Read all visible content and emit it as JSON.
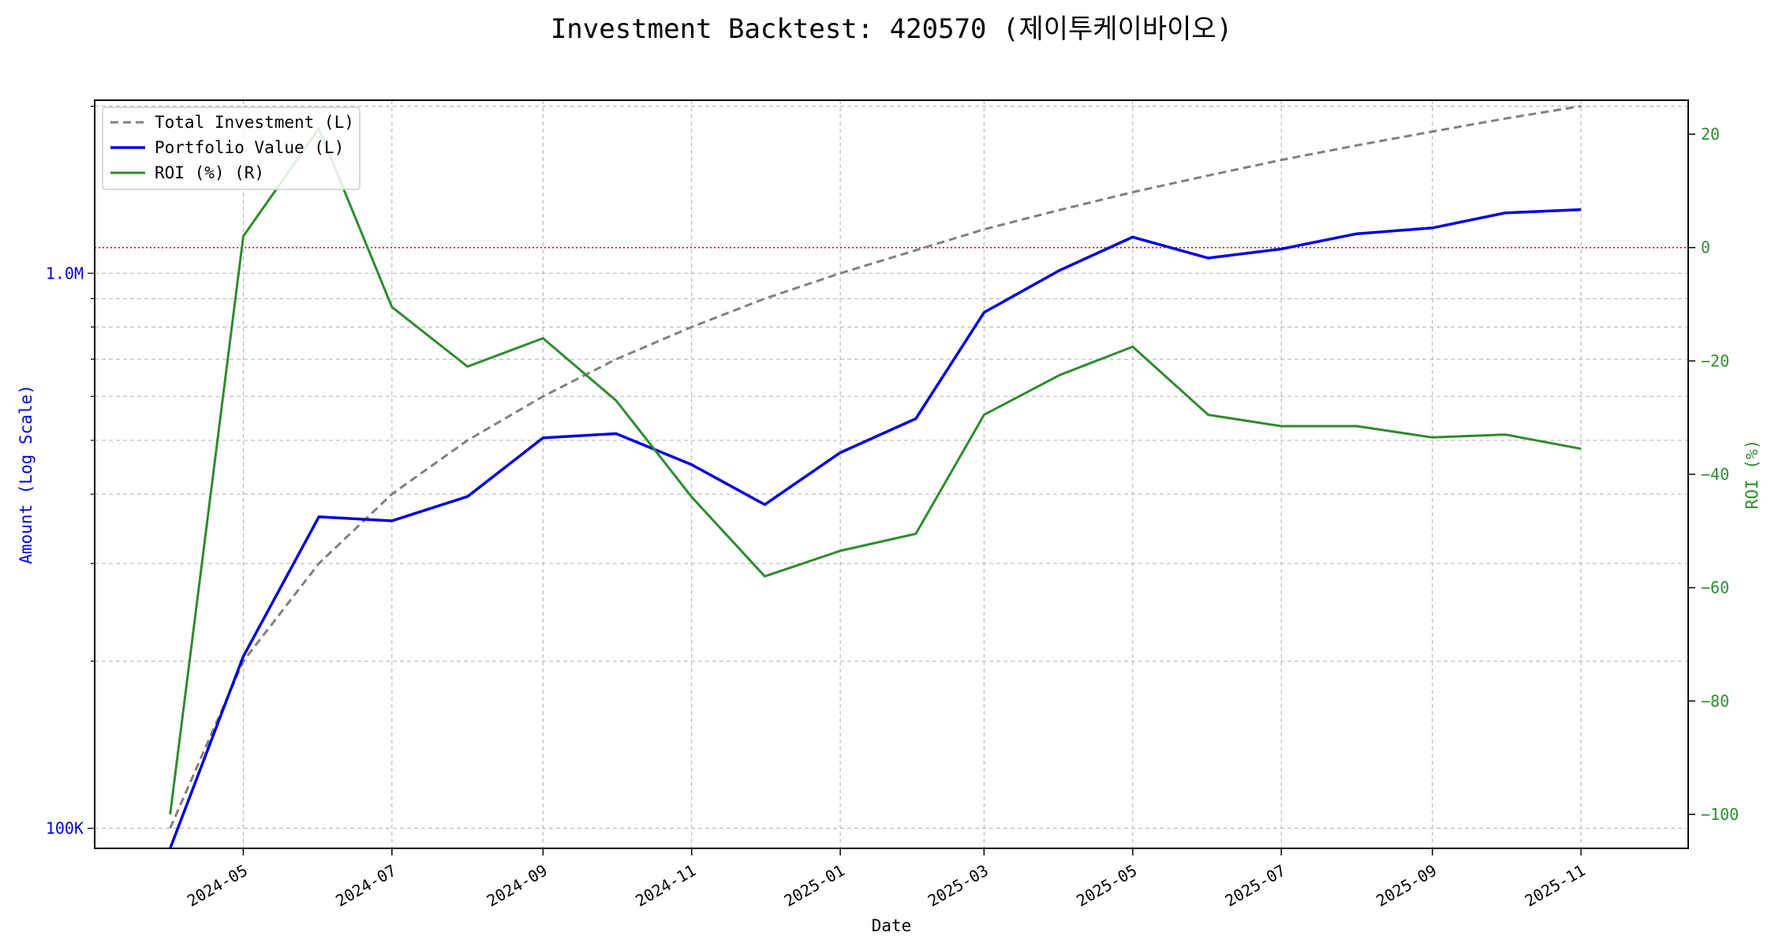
{
  "chart_data": {
    "type": "line",
    "title": "Investment Backtest: 420570 (제이투케이바이오)",
    "xlabel": "Date",
    "ylabel_left": "Amount (Log Scale)",
    "ylabel_right": "ROI (%)",
    "y_left_scale": "log",
    "y_left_lim": [
      92000,
      2050000
    ],
    "y_right_lim": [
      -106,
      26
    ],
    "x_lim": [
      "2024-03-01",
      "2025-12-15"
    ],
    "x_ticks": [
      "2024-05-01",
      "2024-07-01",
      "2024-09-01",
      "2024-11-01",
      "2025-01-01",
      "2025-03-01",
      "2025-05-01",
      "2025-07-01",
      "2025-09-01",
      "2025-11-01"
    ],
    "x_tick_labels": [
      "2024-05",
      "2024-07",
      "2024-09",
      "2024-11",
      "2025-01",
      "2025-03",
      "2025-05",
      "2025-07",
      "2025-09",
      "2025-11"
    ],
    "y_left_ticks": [
      100000,
      1000000
    ],
    "y_left_tick_labels": [
      "100K",
      "1.0M"
    ],
    "y_right_ticks": [
      20,
      0,
      -20,
      -40,
      -60,
      -80,
      -100
    ],
    "y_right_tick_labels": [
      "20",
      "0",
      "−20",
      "−40",
      "−60",
      "−80",
      "−100"
    ],
    "grid": true,
    "legend_position": "top-left",
    "reference_line": {
      "axis": "right",
      "value": 0,
      "color": "#cc0000",
      "style": "dotted"
    },
    "dates": [
      "2024-04-01",
      "2024-05-01",
      "2024-06-01",
      "2024-07-01",
      "2024-08-01",
      "2024-09-01",
      "2024-10-01",
      "2024-11-01",
      "2024-12-01",
      "2025-01-01",
      "2025-02-01",
      "2025-03-01",
      "2025-04-01",
      "2025-05-01",
      "2025-06-01",
      "2025-07-01",
      "2025-08-01",
      "2025-09-01",
      "2025-10-01",
      "2025-11-01"
    ],
    "series": [
      {
        "name": "Total Investment (L)",
        "axis": "left",
        "color": "#808080",
        "style": "dashed",
        "values": [
          100000,
          200000,
          300000,
          400000,
          500000,
          600000,
          700000,
          800000,
          900000,
          1000000,
          1100000,
          1200000,
          1300000,
          1400000,
          1500000,
          1600000,
          1700000,
          1800000,
          1900000,
          2000000
        ]
      },
      {
        "name": "Portfolio Value (L)",
        "axis": "left",
        "color": "#0000dd",
        "style": "solid",
        "values": [
          null,
          204000,
          364000,
          358000,
          396000,
          505000,
          514000,
          452000,
          383000,
          475000,
          547000,
          850000,
          1012000,
          1162000,
          1065000,
          1106000,
          1178000,
          1207000,
          1285000,
          1302000
        ]
      },
      {
        "name": "ROI (%) (R)",
        "axis": "right",
        "color": "#2e8b2e",
        "style": "solid",
        "values": [
          -100,
          2,
          21,
          -10.5,
          -21,
          -16,
          -27,
          -44,
          -58,
          -53.5,
          -50.5,
          -29.5,
          -22.5,
          -17.5,
          -29.5,
          -31.5,
          -31.5,
          -33.5,
          -33,
          -35.5
        ]
      }
    ]
  }
}
